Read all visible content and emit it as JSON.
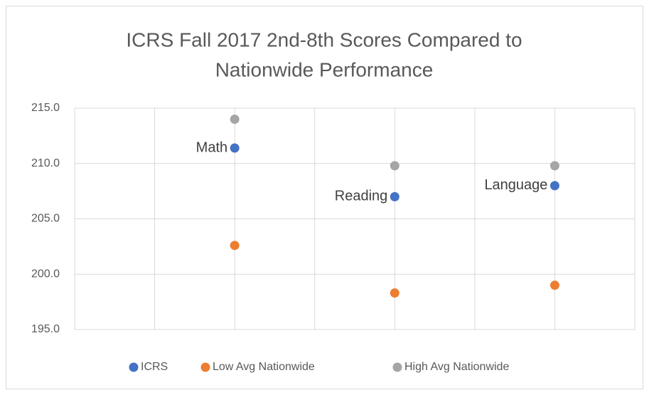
{
  "chart_data": {
    "type": "scatter",
    "title": [
      "ICRS Fall 2017 2nd-8th Scores Compared to",
      "Nationwide Performance"
    ],
    "x": [
      2,
      4,
      6
    ],
    "series": [
      {
        "name": "ICRS",
        "color": "#4472c4",
        "values": [
          211.4,
          207.0,
          208.0
        ],
        "point_labels": [
          "Math",
          "Reading",
          "Language"
        ]
      },
      {
        "name": "Low Avg Nationwide",
        "color": "#ed7d31",
        "values": [
          202.6,
          198.3,
          199.0
        ]
      },
      {
        "name": "High Avg Nationwide",
        "color": "#a5a5a5",
        "values": [
          214.0,
          209.8,
          209.8
        ]
      }
    ],
    "xlim": [
      0,
      7
    ],
    "xticks": [
      0,
      1,
      2,
      3,
      4,
      5,
      6,
      7
    ],
    "ylim": [
      195,
      215
    ],
    "yticks": [
      {
        "value": 195,
        "label": "195.0"
      },
      {
        "value": 200,
        "label": "200.0"
      },
      {
        "value": 205,
        "label": "205.0"
      },
      {
        "value": 210,
        "label": "210.0"
      },
      {
        "value": 215,
        "label": "215.0"
      }
    ],
    "grid": true,
    "legend": "bottom"
  }
}
